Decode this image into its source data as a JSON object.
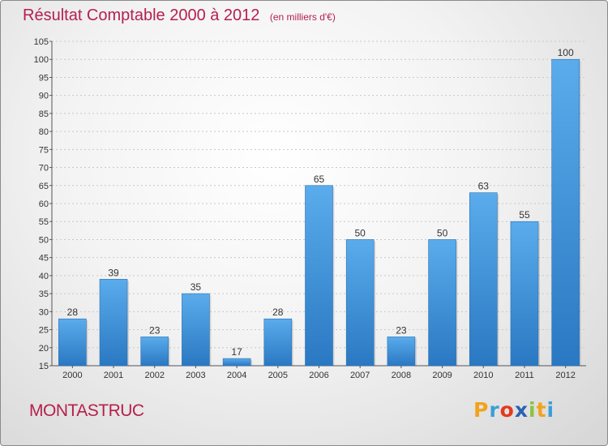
{
  "chart_data": {
    "type": "bar",
    "title": "Résultat Comptable 2000 à 2012",
    "subtitle": "(en milliers d'€)",
    "categories": [
      "2000",
      "2001",
      "2002",
      "2003",
      "2004",
      "2005",
      "2006",
      "2007",
      "2008",
      "2009",
      "2010",
      "2011",
      "2012"
    ],
    "values": [
      28,
      39,
      23,
      35,
      17,
      28,
      65,
      50,
      23,
      50,
      63,
      55,
      100
    ],
    "ylim": [
      15,
      105
    ],
    "yticks": [
      15,
      20,
      25,
      30,
      35,
      40,
      45,
      50,
      55,
      60,
      65,
      70,
      75,
      80,
      85,
      90,
      95,
      100,
      105
    ],
    "grid": true,
    "bar_color": "#3c8fd8",
    "title_color": "#b5204e"
  },
  "commune": "MONTASTRUC",
  "logo": {
    "letters": [
      "P",
      "r",
      "o",
      "x",
      "i",
      "t",
      "i"
    ],
    "colors": [
      "#f2a31c",
      "#3b9fd6",
      "#e43a1f",
      "#2a62b3",
      "#8bc43f",
      "#f2a31c",
      "#3b9fd6"
    ]
  }
}
